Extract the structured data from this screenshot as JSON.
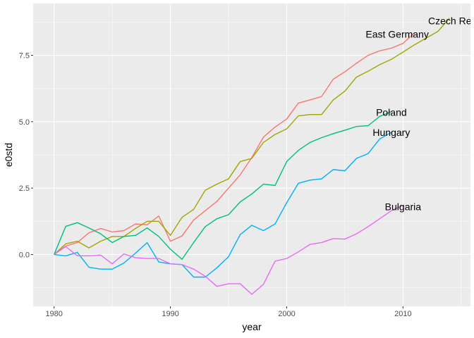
{
  "chart_data": {
    "type": "line",
    "title": "",
    "xlabel": "year",
    "ylabel": "e0std",
    "xlim": [
      1978.2,
      2015.8
    ],
    "ylim": [
      -1.95,
      9.45
    ],
    "x_ticks": [
      1980,
      1990,
      2000,
      2010
    ],
    "x_tick_labels": [
      "1980",
      "1990",
      "2000",
      "2010"
    ],
    "y_ticks": [
      0,
      2.5,
      5,
      7.5
    ],
    "y_tick_labels": [
      "0.0",
      "2.5",
      "5.0",
      "7.5"
    ],
    "grid": true,
    "legend": "none (direct labels)",
    "panel_background": "#ebebeb",
    "series": [
      {
        "name": "Czech Republic",
        "label_text": "Czech Repu",
        "color": "#F8766D",
        "x": [
          1980,
          1981,
          1982,
          1983,
          1984,
          1985,
          1986,
          1987,
          1988,
          1989,
          1990,
          1991,
          1992,
          1993,
          1994,
          1995,
          1996,
          1997,
          1998,
          1999,
          2000,
          2001,
          2002,
          2003,
          2004,
          2005,
          2006,
          2007,
          2008,
          2009,
          2010,
          2011
        ],
        "values": [
          0,
          0.32,
          0.45,
          0.82,
          0.98,
          0.85,
          0.9,
          1.15,
          1.12,
          1.45,
          0.5,
          0.7,
          1.3,
          1.65,
          2.0,
          2.5,
          3.0,
          3.65,
          4.42,
          4.8,
          5.1,
          5.7,
          5.82,
          5.95,
          6.6,
          6.88,
          7.2,
          7.5,
          7.67,
          7.77,
          7.95,
          8.35
        ],
        "label_x": 2014.5,
        "label_y": 8.8
      },
      {
        "name": "East Germany",
        "label_text": "East Germany",
        "color": "#A3A500",
        "x": [
          1980,
          1981,
          1982,
          1983,
          1984,
          1985,
          1986,
          1987,
          1988,
          1989,
          1990,
          1991,
          1992,
          1993,
          1994,
          1995,
          1996,
          1997,
          1998,
          1999,
          2000,
          2001,
          2002,
          2003,
          2004,
          2005,
          2006,
          2007,
          2008,
          2009,
          2010,
          2011,
          2012,
          2013,
          2014
        ],
        "values": [
          0,
          0.4,
          0.5,
          0.25,
          0.5,
          0.68,
          0.68,
          0.98,
          1.25,
          1.25,
          0.72,
          1.4,
          1.7,
          2.42,
          2.65,
          2.85,
          3.5,
          3.62,
          4.22,
          4.52,
          4.73,
          5.22,
          5.27,
          5.27,
          5.82,
          6.15,
          6.68,
          6.9,
          7.15,
          7.35,
          7.62,
          7.9,
          8.15,
          8.4,
          8.9
        ],
        "label_x": 2009.5,
        "label_y": 8.3
      },
      {
        "name": "Poland",
        "label_text": "Poland",
        "color": "#00BF7D",
        "x": [
          1980,
          1981,
          1982,
          1983,
          1984,
          1985,
          1986,
          1987,
          1988,
          1989,
          1990,
          1991,
          1992,
          1993,
          1994,
          1995,
          1996,
          1997,
          1998,
          1999,
          2000,
          2001,
          2002,
          2003,
          2004,
          2005,
          2006,
          2007,
          2008,
          2009
        ],
        "values": [
          0,
          1.06,
          1.2,
          1.0,
          0.78,
          0.45,
          0.68,
          0.72,
          1.0,
          0.68,
          0.2,
          -0.18,
          0.45,
          1.05,
          1.35,
          1.5,
          1.98,
          2.28,
          2.65,
          2.6,
          3.5,
          3.92,
          4.22,
          4.4,
          4.55,
          4.68,
          4.82,
          4.85,
          5.2,
          5.38
        ],
        "label_x": 2009,
        "label_y": 5.35
      },
      {
        "name": "Hungary",
        "label_text": "Hungary",
        "color": "#00B0F6",
        "x": [
          1980,
          1981,
          1982,
          1983,
          1984,
          1985,
          1986,
          1987,
          1988,
          1989,
          1990,
          1991,
          1992,
          1993,
          1994,
          1995,
          1996,
          1997,
          1998,
          1999,
          2000,
          2001,
          2002,
          2003,
          2004,
          2005,
          2006,
          2007,
          2008,
          2009
        ],
        "values": [
          0,
          -0.05,
          0.08,
          -0.48,
          -0.55,
          -0.55,
          -0.32,
          0.05,
          0.45,
          -0.28,
          -0.35,
          -0.38,
          -0.85,
          -0.85,
          -0.5,
          -0.08,
          0.75,
          1.1,
          0.9,
          1.15,
          1.95,
          2.68,
          2.8,
          2.85,
          3.2,
          3.15,
          3.62,
          3.8,
          4.35,
          4.6
        ],
        "label_x": 2009,
        "label_y": 4.6
      },
      {
        "name": "Bulgaria",
        "label_text": "Bulgaria",
        "color": "#E76BF3",
        "x": [
          1980,
          1981,
          1982,
          1983,
          1984,
          1985,
          1986,
          1987,
          1988,
          1989,
          1990,
          1991,
          1992,
          1993,
          1994,
          1995,
          1996,
          1997,
          1998,
          1999,
          2000,
          2001,
          2002,
          2003,
          2004,
          2005,
          2006,
          2007,
          2008,
          2009,
          2010
        ],
        "values": [
          0,
          0.3,
          -0.05,
          -0.05,
          -0.02,
          -0.35,
          0.02,
          -0.12,
          -0.15,
          -0.15,
          -0.35,
          -0.38,
          -0.55,
          -0.82,
          -1.2,
          -1.1,
          -1.1,
          -1.5,
          -1.12,
          -0.25,
          -0.15,
          0.1,
          0.38,
          0.45,
          0.6,
          0.58,
          0.78,
          1.05,
          1.35,
          1.65,
          1.85
        ],
        "label_x": 2010,
        "label_y": 1.8
      }
    ]
  }
}
